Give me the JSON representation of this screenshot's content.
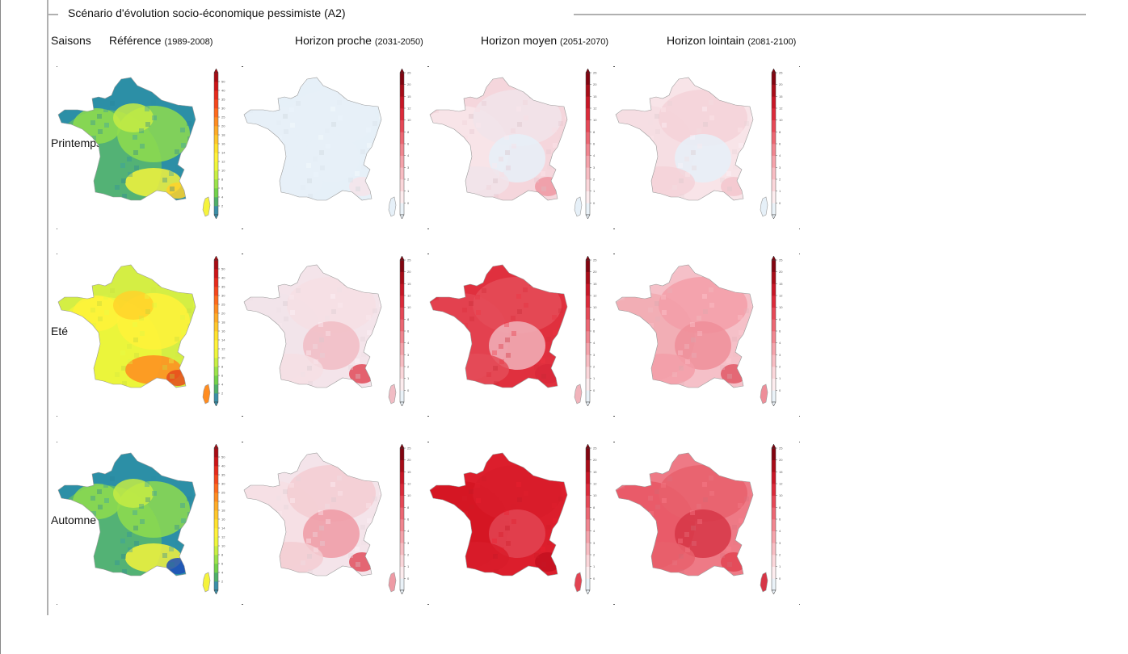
{
  "legend": "Scénario d'évolution socio-économique pessimiste (A2)",
  "header": {
    "saisons": "Saisons",
    "columns": [
      {
        "title": "Référence",
        "period": "(1989-2008)"
      },
      {
        "title": "Horizon proche",
        "period": "(2031-2050)"
      },
      {
        "title": "Horizon moyen",
        "period": "(2051-2070)"
      },
      {
        "title": "Horizon lointain",
        "period": "(2081-2100)"
      }
    ]
  },
  "seasons": [
    "Printemps",
    "Eté",
    "Automne"
  ],
  "scales": {
    "reference": {
      "ticks": [
        "2",
        "4",
        "6",
        "8",
        "10",
        "12",
        "14",
        "16",
        "18",
        "20",
        "25",
        "30",
        "35",
        "40",
        "50"
      ],
      "colors": [
        "#3b8fa8",
        "#4fb06a",
        "#72d24a",
        "#9be34a",
        "#c8ef42",
        "#eef63a",
        "#fff23a",
        "#ffe22c",
        "#ffc72a",
        "#ffab26",
        "#ff8c20",
        "#ff6a1c",
        "#f5461c",
        "#e62a1c",
        "#cc1418",
        "#a80c14"
      ]
    },
    "delta": {
      "ticks": [
        "0",
        "1",
        "2",
        "3",
        "4",
        "6",
        "8",
        "10",
        "12",
        "15",
        "20",
        "25"
      ],
      "colors": [
        "#eaf2f8",
        "#fdecee",
        "#fbd6da",
        "#f8bcc2",
        "#f5a2aa",
        "#f1858f",
        "#ec6672",
        "#e64856",
        "#dc2a3a",
        "#c81626",
        "#a80c18",
        "#820410"
      ]
    }
  },
  "maps": {
    "reference": [
      [
        "#2c8fa6",
        "#5ab86c",
        "#8fdc4e",
        "#c6ec44",
        "#f5f33c",
        "#ffd22a"
      ],
      [
        "#d4ee44",
        "#eef63a",
        "#fff23a",
        "#ffd22a",
        "#ff8c20",
        "#e64a1c"
      ],
      [
        "#2c8fa6",
        "#5ab86c",
        "#8fdc4e",
        "#c6ec44",
        "#f5f33c",
        "#1f4fb8"
      ]
    ],
    "delta": [
      [
        [
          "#e6f0f8",
          "#e6f0f8",
          "#e6f0f8",
          "#e6f0f8",
          "#f4e4ea"
        ],
        [
          "#f4e4ea",
          "#f1e4ea",
          "#f6dfe4",
          "#f1bcc4",
          "#e04a58"
        ],
        [
          "#f4e4ea",
          "#f6dfe4",
          "#f3ccd2",
          "#ee9aa4",
          "#e0505e"
        ]
      ],
      [
        [
          "#f5d6dc",
          "#f8e6ea",
          "#f1e4ea",
          "#e6f0f8",
          "#ef98a2"
        ],
        [
          "#e0303e",
          "#e34452",
          "#e44c58",
          "#f1b3bb",
          "#d8283a"
        ],
        [
          "#dc1e2c",
          "#d41522",
          "#d81c2a",
          "#e24452",
          "#c41020"
        ]
      ],
      [
        [
          "#f8e4e8",
          "#f6dde2",
          "#f4d2d8",
          "#e6f0f8",
          "#f3c6cc"
        ],
        [
          "#f5c0c8",
          "#f1aab2",
          "#f39ea8",
          "#ee8e99",
          "#e05866"
        ],
        [
          "#ee7a86",
          "#e85664",
          "#e8606c",
          "#d63646",
          "#e24452"
        ]
      ]
    ]
  }
}
